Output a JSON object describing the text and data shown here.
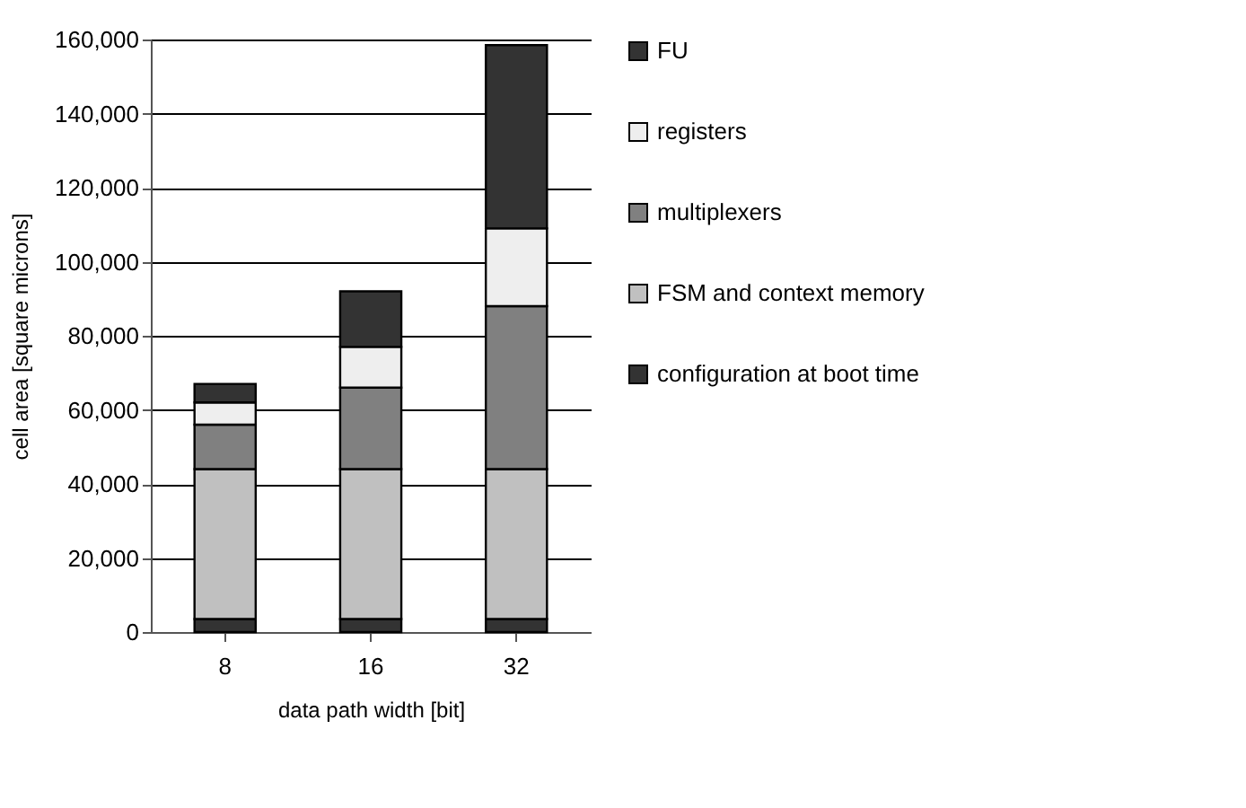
{
  "chart_data": {
    "type": "bar",
    "stacked": true,
    "xlabel": "data path width [bit]",
    "ylabel": "cell area [square microns]",
    "categories": [
      "8",
      "16",
      "32"
    ],
    "series": [
      {
        "name": "configuration at boot time",
        "color": "#333333",
        "values": [
          3500,
          3500,
          3500
        ]
      },
      {
        "name": "FSM and context memory",
        "color": "#c0c0c0",
        "values": [
          40500,
          40500,
          40500
        ]
      },
      {
        "name": "multiplexers",
        "color": "#808080",
        "values": [
          12000,
          22000,
          44000
        ]
      },
      {
        "name": "registers",
        "color": "#eeeeee",
        "values": [
          6000,
          11000,
          21000
        ]
      },
      {
        "name": "FU",
        "color": "#333333",
        "values": [
          5000,
          15000,
          49500
        ]
      }
    ],
    "ylim": [
      0,
      160000
    ],
    "yticks": [
      0,
      {
        "value": 20000,
        "label": "20,000"
      },
      {
        "value": 40000,
        "label": "40,000"
      },
      {
        "value": 60000,
        "label": "60,000"
      },
      {
        "value": 80000,
        "label": "80,000"
      },
      {
        "value": 100000,
        "label": "100,000"
      },
      {
        "value": 120000,
        "label": "120,000"
      },
      {
        "value": 140000,
        "label": "140,000"
      },
      {
        "value": 160000,
        "label": "160,000"
      }
    ],
    "grid": "y",
    "legend": "right"
  }
}
